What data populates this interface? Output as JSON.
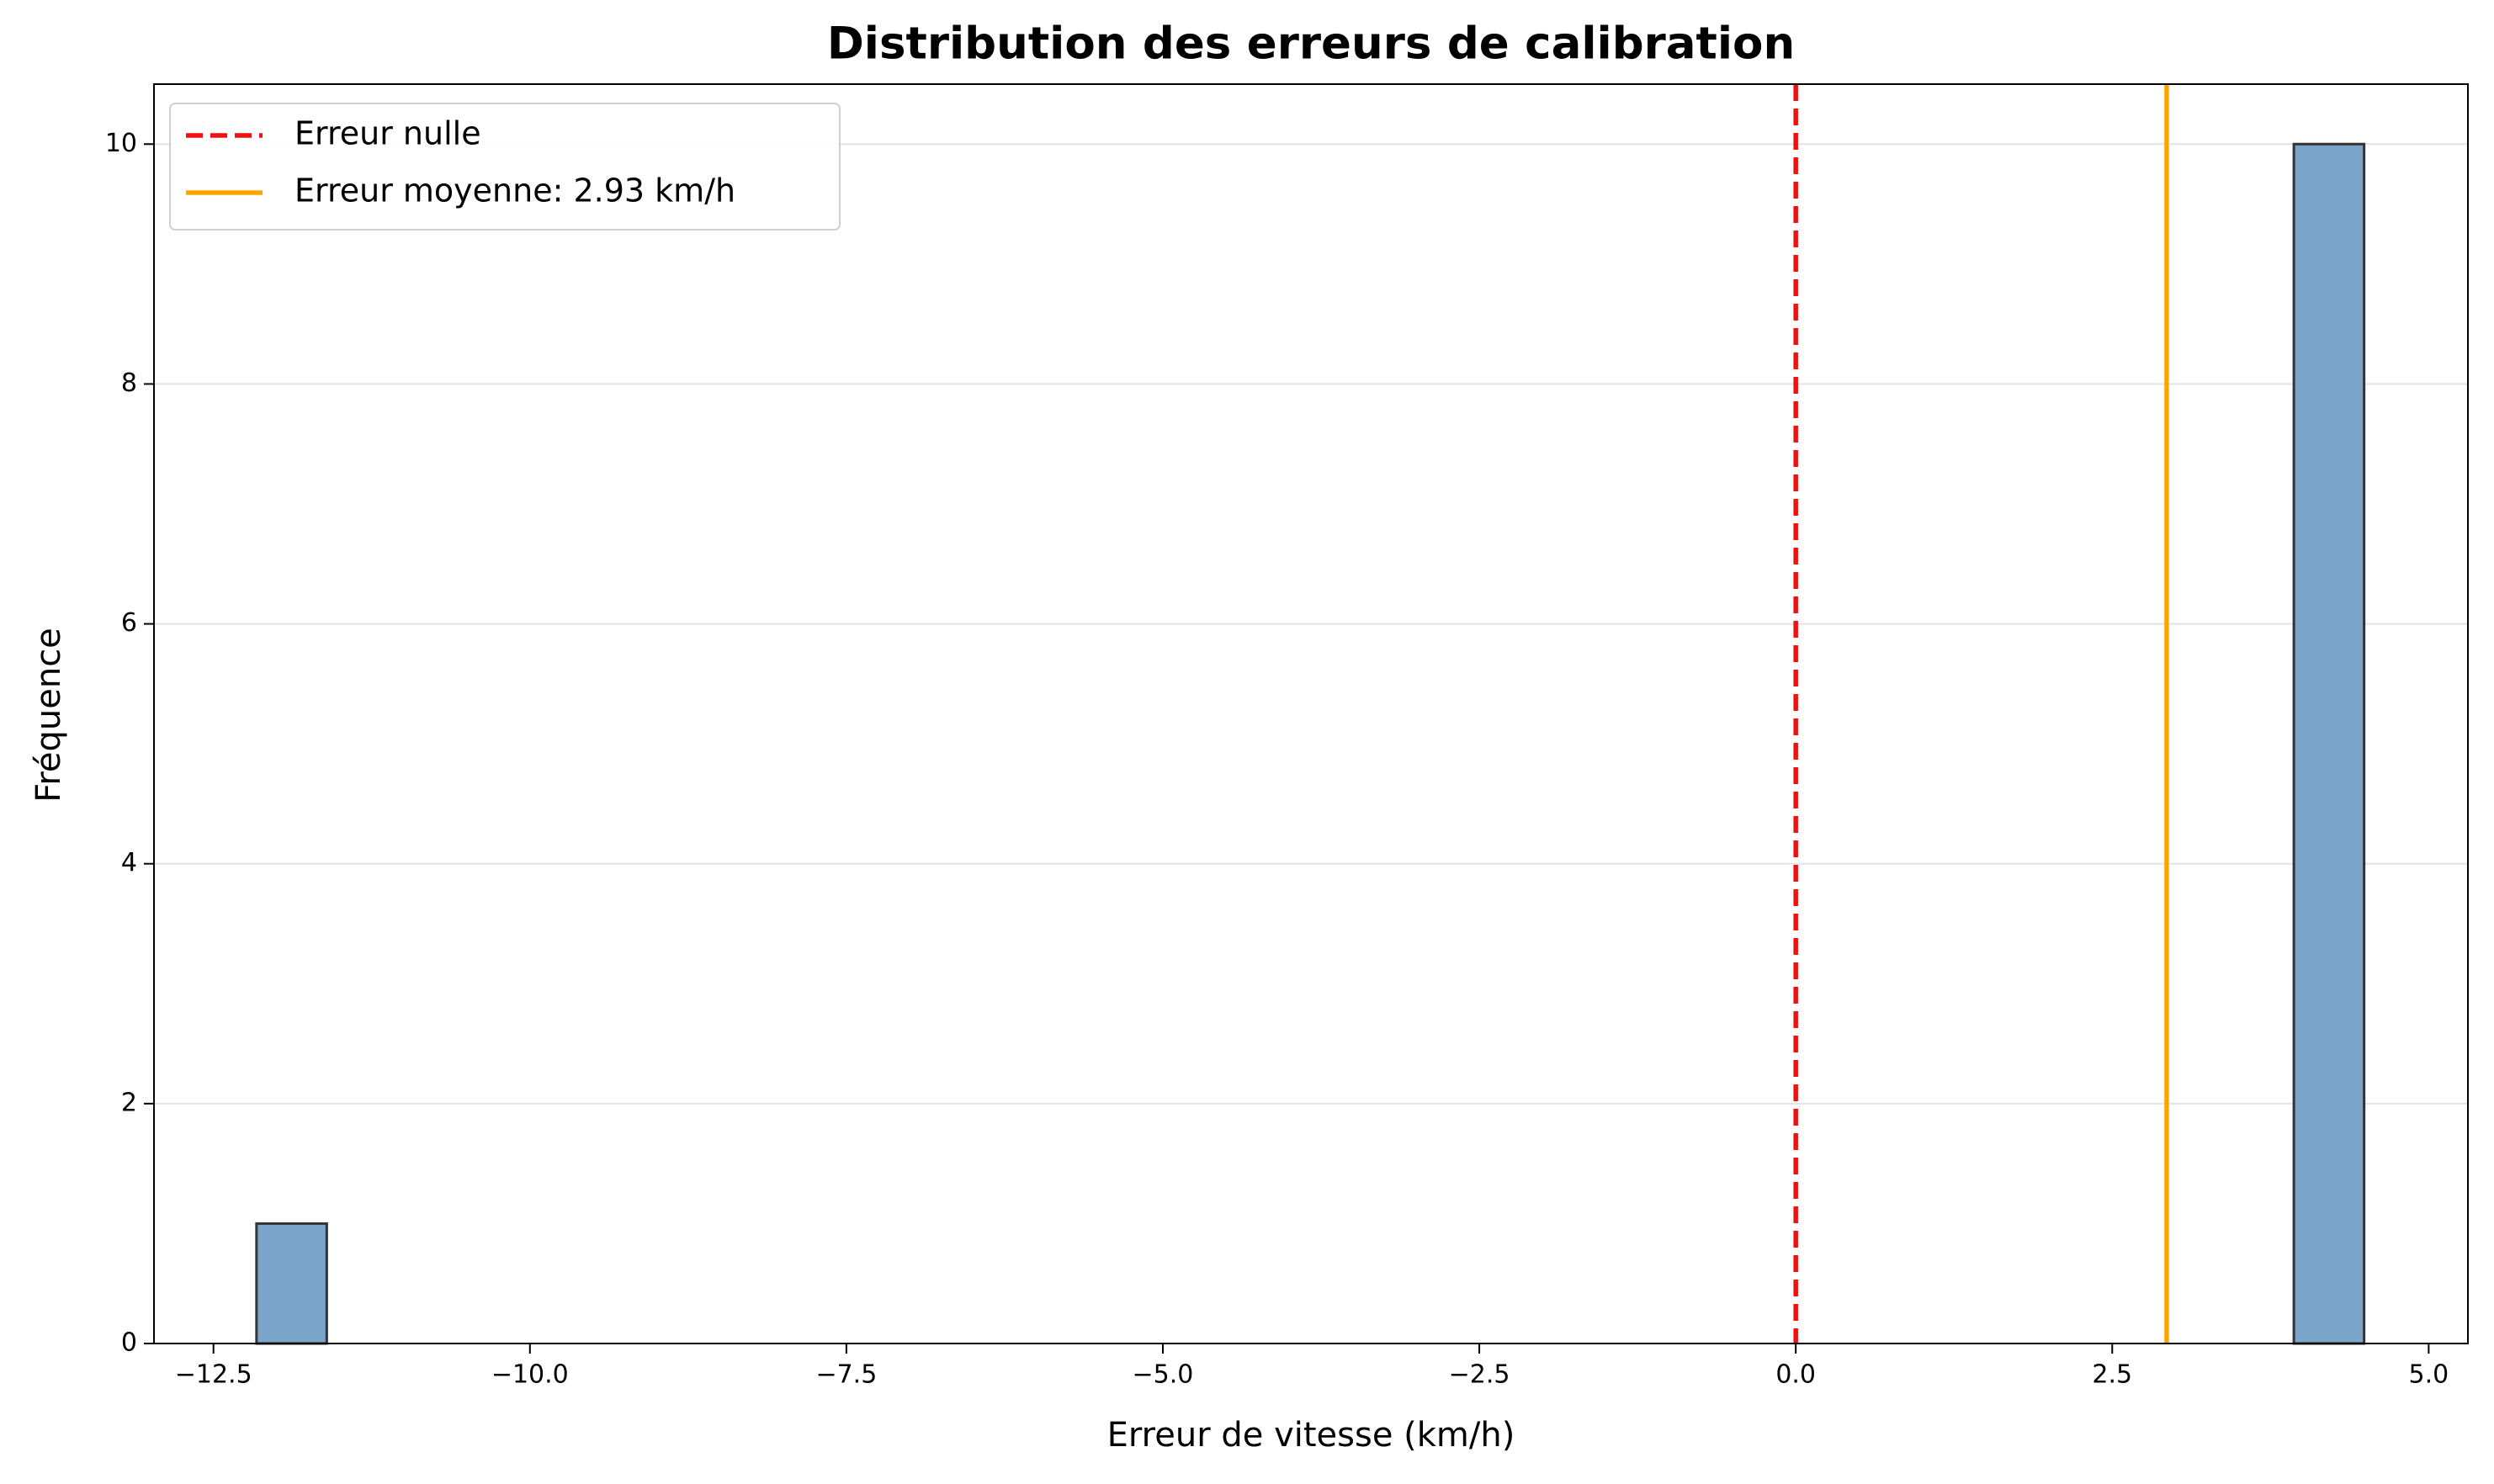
{
  "chart_data": {
    "type": "histogram",
    "title": "Distribution des erreurs de calibration",
    "x_label": "Erreur de vitesse (km/h)",
    "y_label": "Fréquence",
    "bins": [
      -12.16,
      -11.605,
      -11.05,
      -10.495,
      -9.94,
      -9.385,
      -8.83,
      -8.275,
      -7.72,
      -7.165,
      -6.61,
      -6.055,
      -5.5,
      -4.945,
      -4.39,
      -3.835,
      -3.28,
      -2.725,
      -2.17,
      -1.615,
      -1.06,
      -0.505,
      0.05,
      0.605,
      1.16,
      1.715,
      2.27,
      2.825,
      3.38,
      3.935,
      4.49
    ],
    "counts": [
      1,
      0,
      0,
      0,
      0,
      0,
      0,
      0,
      0,
      0,
      0,
      0,
      0,
      0,
      0,
      0,
      0,
      0,
      0,
      0,
      0,
      0,
      0,
      0,
      0,
      0,
      0,
      0,
      0,
      10
    ],
    "color": "#7ba4c9",
    "edgecolor": "#333333",
    "vlines": [
      {
        "name": "Erreur nulle",
        "x": 0,
        "color": "#ee1111",
        "style": "dashed"
      },
      {
        "name": "Erreur moyenne: 2.93 km/h",
        "x": 2.93,
        "color": "#ffa500",
        "style": "solid"
      }
    ],
    "xlim": [
      -12.97,
      5.31
    ],
    "ylim": [
      0,
      10.5
    ],
    "xticks": [
      {
        "value": -12.5,
        "label": "−12.5"
      },
      {
        "value": -10,
        "label": "−10.0"
      },
      {
        "value": -7.5,
        "label": "−7.5"
      },
      {
        "value": -5,
        "label": "−5.0"
      },
      {
        "value": -2.5,
        "label": "−2.5"
      },
      {
        "value": 0,
        "label": "0.0"
      },
      2.5,
      {
        "value": 5,
        "label": "5.0"
      }
    ],
    "yticks": [
      0,
      2,
      4,
      6,
      8,
      10
    ],
    "grid": "y",
    "legend": "upper left"
  }
}
